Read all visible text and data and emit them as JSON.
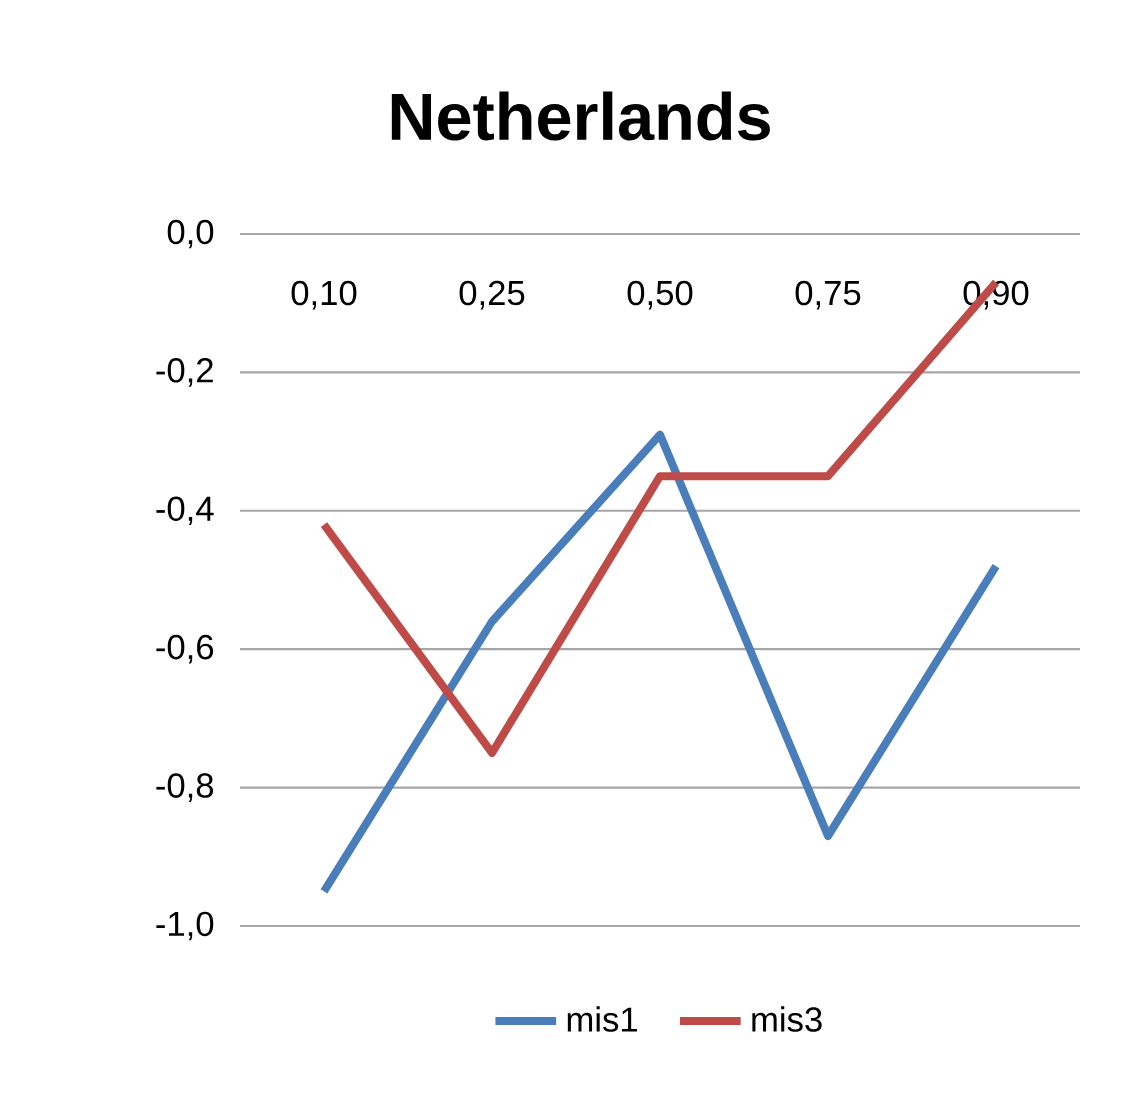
{
  "chart_data": {
    "type": "line",
    "title": "Netherlands",
    "categories": [
      "0,10",
      "0,25",
      "0,50",
      "0,75",
      "0,90"
    ],
    "series": [
      {
        "name": "mis1",
        "color": "#4a7ebb",
        "values": [
          -0.95,
          -0.56,
          -0.29,
          -0.87,
          -0.48
        ]
      },
      {
        "name": "mis3",
        "color": "#be4b48",
        "values": [
          -0.42,
          -0.75,
          -0.35,
          -0.35,
          -0.07
        ]
      }
    ],
    "ylim": [
      -1.0,
      0.0
    ],
    "yticks": [
      {
        "value": -1.0,
        "label": "-1,0"
      },
      {
        "value": -0.8,
        "label": "-0,8"
      },
      {
        "value": -0.6,
        "label": "-0,6"
      },
      {
        "value": -0.4,
        "label": "-0,4"
      },
      {
        "value": -0.2,
        "label": "-0,2"
      },
      {
        "value": 0.0,
        "label": "0,0"
      }
    ],
    "grid": "y",
    "legend": "bottom",
    "marker": "none",
    "line_style": "solid"
  }
}
